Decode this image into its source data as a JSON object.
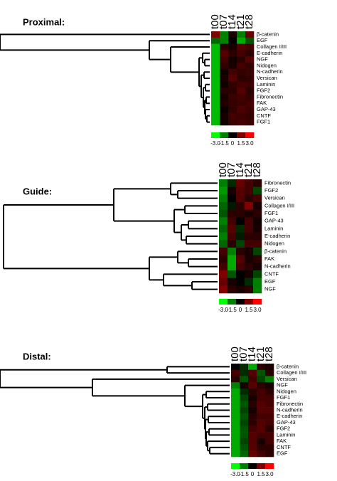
{
  "chart_data": [
    {
      "type": "heatmap",
      "title": "Proximal:",
      "x": [
        "t00",
        "t07",
        "t14",
        "t21",
        "t28"
      ],
      "y": [
        "β-catenin",
        "EGF",
        "Collagen I/III",
        "E-cadherin",
        "NGF",
        "Nidogen",
        "N-cadherin",
        "Versican",
        "Laminin",
        "FGF2",
        "Fibronectin",
        "FAK",
        "GAP-43",
        "CNTF",
        "FGF1"
      ],
      "values": [
        [
          1.5,
          -1.5,
          0.3,
          -1.5,
          1.2
        ],
        [
          -1.2,
          -1.5,
          0,
          -2,
          -1
        ],
        [
          -2.2,
          0.5,
          0.3,
          1,
          0.8
        ],
        [
          -2.2,
          1,
          0.5,
          0.8,
          0.5
        ],
        [
          -2.2,
          0.8,
          0.2,
          0.5,
          1
        ],
        [
          -2.2,
          0.6,
          0.3,
          0.8,
          0.6
        ],
        [
          -2.2,
          0.2,
          0.8,
          0.6,
          0.7
        ],
        [
          -2.2,
          0.3,
          1,
          0.5,
          0.6
        ],
        [
          -2.2,
          0.2,
          0.6,
          0.8,
          0.7
        ],
        [
          -2.2,
          0.5,
          0.5,
          1,
          0.5
        ],
        [
          -2.2,
          0.3,
          0.7,
          0.8,
          0.6
        ],
        [
          -2.2,
          0.4,
          0.6,
          0.7,
          0.8
        ],
        [
          -2.2,
          0.1,
          0.6,
          0.9,
          0.7
        ],
        [
          -2.2,
          0.3,
          0.8,
          0.7,
          0.6
        ],
        [
          -2.2,
          0.2,
          0.7,
          0.8,
          0.7
        ]
      ],
      "clim": [
        -3,
        3
      ],
      "colors": [
        "#00ff00",
        "#000000",
        "#ff0000"
      ],
      "colorbar_ticks": [
        {
          "value": -3,
          "label": "-3.0"
        },
        -1.5,
        0,
        1.5,
        {
          "value": 3,
          "label": "3.0"
        }
      ]
    },
    {
      "type": "heatmap",
      "title": "Guide:",
      "x": [
        "t00",
        "t07",
        "t14",
        "t21",
        "t28"
      ],
      "y": [
        "Fibronectin",
        "FGF2",
        "Versican",
        "Collagen I/III",
        "FGF1",
        "GAP-43",
        "Laminin",
        "E-cadherin",
        "Nidogen",
        "β-catenin",
        "FAK",
        "N-cadherin",
        "CNTF",
        "EGF",
        "NGF"
      ],
      "values": [
        [
          -1.5,
          -0.5,
          1.2,
          0.8,
          0.5
        ],
        [
          -1.8,
          0.3,
          1,
          0.8,
          -0.8
        ],
        [
          -1.5,
          0,
          1,
          0.5,
          0.8
        ],
        [
          -1.2,
          -0.3,
          0.5,
          1.5,
          0.3
        ],
        [
          -1,
          0.5,
          0.5,
          0.3,
          0.5
        ],
        [
          -1.5,
          0.8,
          0,
          0.8,
          0.2
        ],
        [
          -1.2,
          1,
          -0.5,
          0.8,
          0.3
        ],
        [
          -1.5,
          0.8,
          -0.3,
          0.5,
          0.5
        ],
        [
          -1.2,
          0.5,
          -0.8,
          0.8,
          0.8
        ],
        [
          0.8,
          -1.5,
          0.5,
          0.3,
          -0.8
        ],
        [
          0.5,
          -2,
          1,
          0.3,
          0.5
        ],
        [
          0.8,
          -2,
          0.8,
          0.5,
          0.3
        ],
        [
          1.5,
          -1,
          0,
          0.3,
          -0.8
        ],
        [
          1.2,
          0.3,
          0,
          -0.5,
          -1.5
        ],
        [
          1.5,
          0.5,
          0.3,
          0.5,
          -1.5
        ]
      ],
      "clim": [
        -3,
        3
      ],
      "colors": [
        "#00ff00",
        "#000000",
        "#ff0000"
      ],
      "colorbar_ticks": [
        {
          "value": -3,
          "label": "-3.0"
        },
        -1.5,
        0,
        1.5,
        {
          "value": 3,
          "label": "3.0"
        }
      ]
    },
    {
      "type": "heatmap",
      "title": "Distal:",
      "x": [
        "t00",
        "t07",
        "t14",
        "t21",
        "t28"
      ],
      "y": [
        "β-catenin",
        "Collagen I/III",
        "Versican",
        "NGF",
        "Nidogen",
        "FGF1",
        "Fibronectin",
        "N-cadherin",
        "E-cadherin",
        "GAP-43",
        "FGF2",
        "Laminin",
        "FAK",
        "CNTF",
        "EGF"
      ],
      "values": [
        [
          0,
          -0.5,
          -2,
          0.5,
          0.3
        ],
        [
          0.8,
          -0.5,
          1,
          -1,
          0.5
        ],
        [
          0.5,
          -1,
          0.8,
          -0.8,
          -1.5
        ],
        [
          -1.5,
          0.3,
          1,
          0.5,
          0.3
        ],
        [
          -2,
          -0.5,
          0.5,
          0.8,
          0.5
        ],
        [
          -2,
          -0.8,
          0.3,
          0.8,
          0.8
        ],
        [
          -2,
          -1,
          0.5,
          1,
          0.8
        ],
        [
          -2,
          -0.8,
          0.3,
          1,
          1
        ],
        [
          -2,
          -1,
          0.5,
          0.8,
          0.8
        ],
        [
          -2,
          -0.8,
          0.5,
          1,
          0.8
        ],
        [
          -2,
          -1,
          0.8,
          1,
          0.5
        ],
        [
          -2,
          -1,
          1,
          0.8,
          0.8
        ],
        [
          -2,
          -0.8,
          1,
          0.3,
          0.8
        ],
        [
          -2,
          -1,
          1,
          0.5,
          0.5
        ],
        [
          -2,
          -1.2,
          1.2,
          0.8,
          0.5
        ]
      ],
      "clim": [
        -3,
        3
      ],
      "colors": [
        "#00ff00",
        "#000000",
        "#ff0000"
      ],
      "colorbar_ticks": [
        {
          "value": -3,
          "label": "-3.0"
        },
        -1.5,
        0,
        1.5,
        {
          "value": 3,
          "label": "3.0"
        }
      ]
    }
  ]
}
